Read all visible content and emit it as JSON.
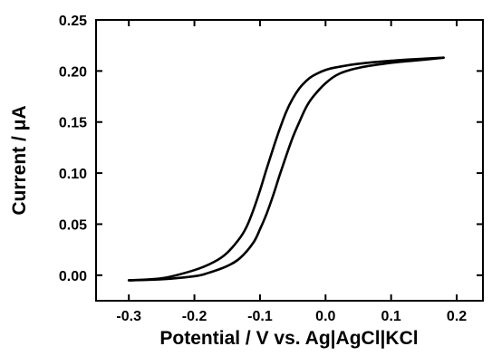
{
  "chart_data": {
    "type": "line",
    "xlabel": "Potential / V vs. Ag|AgCl|KCl",
    "ylabel": "Current / μA",
    "xlim": [
      -0.35,
      0.24
    ],
    "ylim": [
      -0.025,
      0.25
    ],
    "x_ticks": [
      -0.3,
      -0.2,
      -0.1,
      0.0,
      0.1,
      0.2
    ],
    "x_tick_labels": [
      "-0.3",
      "-0.2",
      "-0.1",
      "0.0",
      "0.1",
      "0.2"
    ],
    "y_ticks": [
      0.0,
      0.05,
      0.1,
      0.15,
      0.2,
      0.25
    ],
    "y_tick_labels": [
      "0.00",
      "0.05",
      "0.10",
      "0.15",
      "0.20",
      "0.25"
    ],
    "grid": false,
    "line_color": "#000000",
    "series": [
      {
        "x": [
          -0.3,
          -0.25,
          -0.2,
          -0.17,
          -0.15,
          -0.13,
          -0.12,
          -0.11,
          -0.1,
          -0.09,
          -0.08,
          -0.07,
          -0.06,
          -0.05,
          -0.04,
          -0.03,
          -0.02,
          0.0,
          0.02,
          0.05,
          0.1,
          0.15,
          0.18
        ],
        "y": [
          -0.005,
          -0.003,
          0.005,
          0.013,
          0.022,
          0.037,
          0.048,
          0.064,
          0.083,
          0.104,
          0.124,
          0.143,
          0.16,
          0.173,
          0.183,
          0.19,
          0.195,
          0.201,
          0.204,
          0.207,
          0.21,
          0.212,
          0.213
        ]
      },
      {
        "x": [
          0.18,
          0.15,
          0.1,
          0.05,
          0.02,
          0.0,
          -0.02,
          -0.03,
          -0.04,
          -0.05,
          -0.06,
          -0.07,
          -0.08,
          -0.09,
          -0.1,
          -0.11,
          -0.13,
          -0.15,
          -0.18,
          -0.2,
          -0.25,
          -0.3
        ],
        "y": [
          0.213,
          0.211,
          0.208,
          0.203,
          0.197,
          0.188,
          0.174,
          0.164,
          0.15,
          0.135,
          0.117,
          0.098,
          0.078,
          0.06,
          0.045,
          0.032,
          0.017,
          0.009,
          0.002,
          -0.001,
          -0.004,
          -0.005
        ]
      }
    ]
  }
}
